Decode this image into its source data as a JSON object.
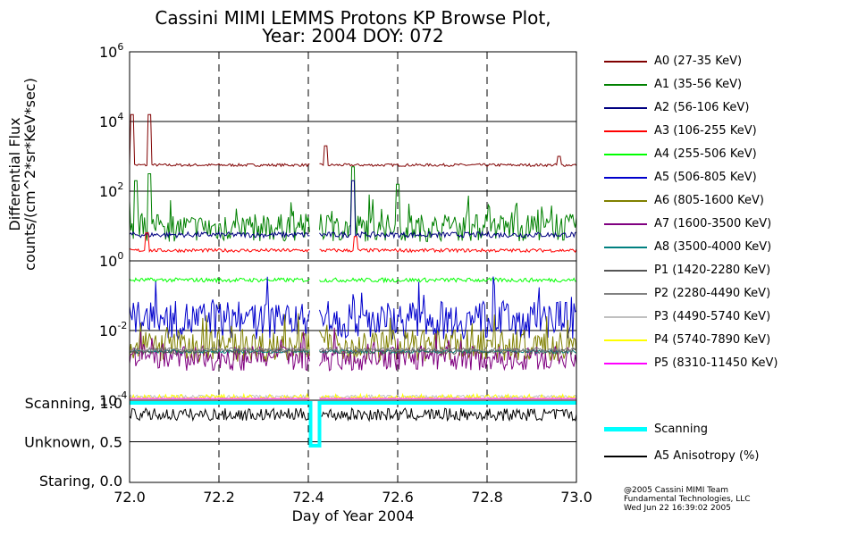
{
  "chart_data": {
    "type": "line",
    "title": "Cassini MIMI LEMMS Protons KP Browse Plot,",
    "subtitle": "Year: 2004 DOY: 072",
    "xlabel": "Day of Year 2004",
    "ylabel_line1": "Differential Flux",
    "ylabel_line2": "counts/(cm^2*sr*KeV*sec)",
    "x_range": [
      72.0,
      73.0
    ],
    "x_ticks": [
      "72.0",
      "72.2",
      "72.4",
      "72.6",
      "72.8",
      "73.0"
    ],
    "x_tick_values": [
      72.0,
      72.2,
      72.4,
      72.6,
      72.8,
      73.0
    ],
    "y_scale": "log",
    "y_range_log10": [
      -4,
      6
    ],
    "y_ticks": [
      {
        "base": "10",
        "exp": "6",
        "log": 6
      },
      {
        "base": "10",
        "exp": "4",
        "log": 4
      },
      {
        "base": "10",
        "exp": "2",
        "log": 2
      },
      {
        "base": "10",
        "exp": "0",
        "log": 0
      },
      {
        "base": "10",
        "exp": "-2",
        "log": -2
      },
      {
        "base": "10",
        "exp": "-4",
        "log": -4
      }
    ],
    "data_gap": [
      72.405,
      72.425
    ],
    "series": [
      {
        "name": "A0 (27-35 KeV)",
        "color": "#800000",
        "base_log": 2.75,
        "noise": 0.04,
        "spikes": [
          [
            72.005,
            4.2
          ],
          [
            72.045,
            4.2
          ],
          [
            72.44,
            3.3
          ],
          [
            72.96,
            3.0
          ]
        ]
      },
      {
        "name": "A1 (35-56 KeV)",
        "color": "#008000",
        "base_log": 0.95,
        "noise": 0.4,
        "spikes": [
          [
            72.015,
            2.3
          ],
          [
            72.045,
            2.5
          ],
          [
            72.5,
            2.7
          ],
          [
            72.6,
            2.2
          ]
        ]
      },
      {
        "name": "A2 (56-106 KeV)",
        "color": "#000080",
        "base_log": 0.75,
        "noise": 0.08,
        "spikes": [
          [
            72.5,
            2.3
          ]
        ]
      },
      {
        "name": "A3 (106-255 KeV)",
        "color": "#ff0000",
        "base_log": 0.3,
        "noise": 0.05,
        "spikes": [
          [
            72.04,
            0.8
          ],
          [
            72.505,
            0.7
          ]
        ]
      },
      {
        "name": "A4 (255-506 KeV)",
        "color": "#00ff00",
        "base_log": -0.55,
        "noise": 0.06,
        "spikes": []
      },
      {
        "name": "A5 (506-805 KeV)",
        "color": "#0000cc",
        "base_log": -1.7,
        "noise": 0.55,
        "spikes": []
      },
      {
        "name": "A6 (805-1600 KeV)",
        "color": "#808000",
        "base_log": -2.45,
        "noise": 0.45,
        "spikes": []
      },
      {
        "name": "A7 (1600-3500 KeV)",
        "color": "#800080",
        "base_log": -2.8,
        "noise": 0.35,
        "spikes": []
      },
      {
        "name": "A8 (3500-4000 KeV)",
        "color": "#008080",
        "base_log": -2.6,
        "noise": 0.05,
        "spikes": []
      },
      {
        "name": "P1 (1420-2280 KeV)",
        "color": "#555555",
        "base_log": -2.6,
        "noise": 0.08,
        "spikes": []
      },
      {
        "name": "P2 (2280-4490 KeV)",
        "color": "#808080",
        "base_log": -2.55,
        "noise": 0.06,
        "spikes": []
      },
      {
        "name": "P3 (4490-5740 KeV)",
        "color": "#c0c0c0",
        "base_log": -3.9,
        "noise": 0.05,
        "spikes": []
      },
      {
        "name": "P4 (5740-7890 KeV)",
        "color": "#ffff00",
        "base_log": -3.95,
        "noise": 0.12,
        "spikes": []
      },
      {
        "name": "P5 (8310-11450 KeV)",
        "color": "#ff00ff",
        "base_log": -4.0,
        "noise": 0.02,
        "spikes": []
      }
    ],
    "lower_panel": {
      "y_labels": [
        {
          "text": "Scanning, 1.0",
          "value": 1.0
        },
        {
          "text": "Unknown, 0.5",
          "value": 0.5
        },
        {
          "text": "Staring, 0.0",
          "value": 0.0
        }
      ],
      "scanning": {
        "name": "Scanning",
        "color": "#00ffff",
        "value": 1.0,
        "dip_range": [
          72.405,
          72.425
        ],
        "dip_value": 0.45
      },
      "anisotropy": {
        "name": "A5 Anisotropy (%)",
        "color": "#000000",
        "base": 0.85,
        "noise": 0.08
      }
    }
  },
  "credits": {
    "line1": "@2005 Cassini MIMI Team",
    "line2": "Fundamental Technologies, LLC",
    "line3": "Wed Jun 22 16:39:02 2005"
  }
}
